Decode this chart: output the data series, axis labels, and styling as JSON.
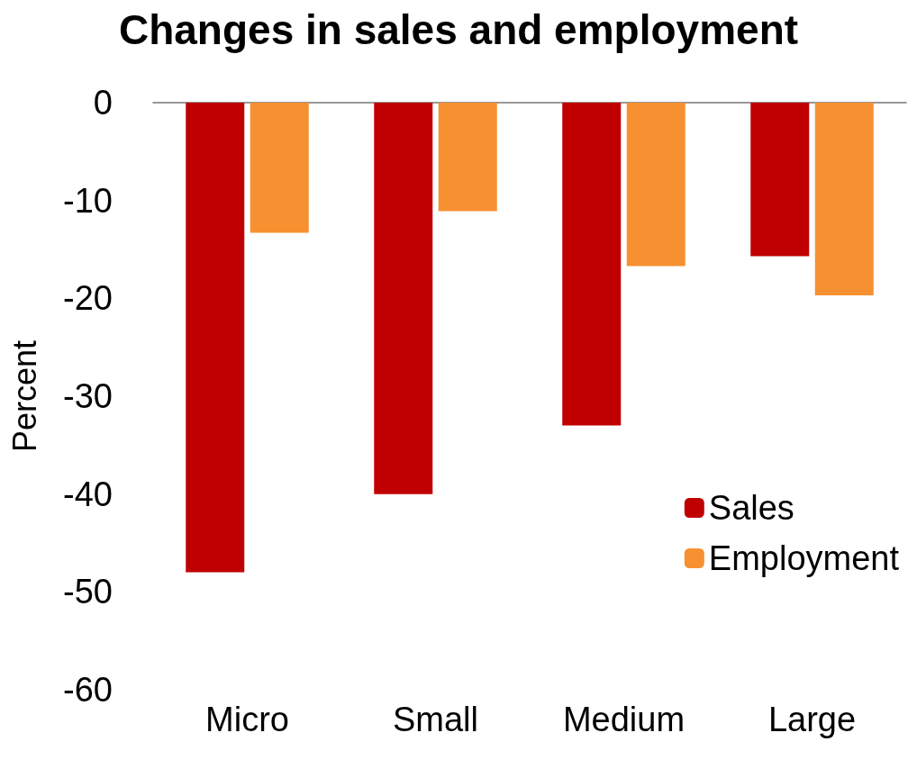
{
  "chart_data": {
    "type": "bar",
    "title": "Changes in sales and employment",
    "ylabel": "Percent",
    "categories": [
      "Micro",
      "Small",
      "Medium",
      "Large"
    ],
    "series": [
      {
        "name": "Sales",
        "color": "#c00000",
        "values": [
          -48,
          -40,
          -33,
          -15.7
        ]
      },
      {
        "name": "Employment",
        "color": "#f79030",
        "values": [
          -13.3,
          -11.1,
          -16.7,
          -19.7
        ]
      }
    ],
    "ylim": [
      -60,
      0
    ],
    "yticks": [
      -60,
      -50,
      -40,
      -30,
      -20,
      -10,
      0
    ],
    "grid": false,
    "legend": "bottom right"
  }
}
